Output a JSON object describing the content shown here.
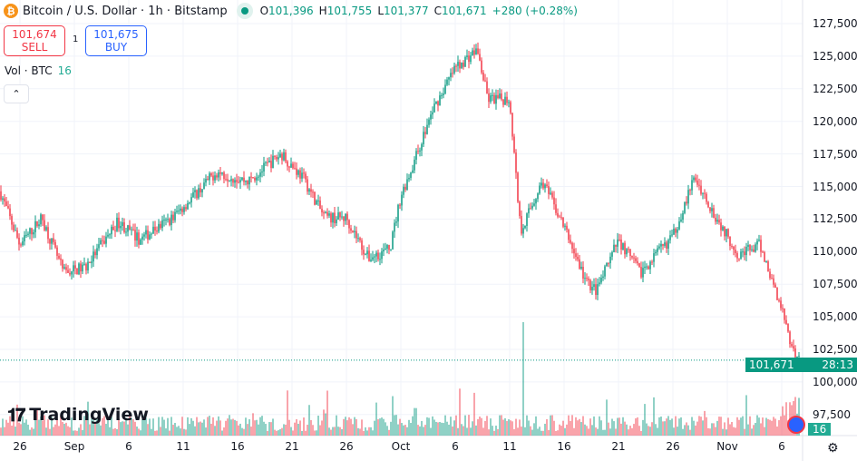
{
  "header": {
    "title": "Bitcoin / U.S. Dollar · 1h · Bitstamp",
    "coin_icon": "bitcoin-icon",
    "status": "market-open",
    "ohlc": {
      "o_label": "O",
      "o": "101,396",
      "h_label": "H",
      "h": "101,755",
      "l_label": "L",
      "l": "101,377",
      "c_label": "C",
      "c": "101,671",
      "change": "+280 (+0.28%)"
    }
  },
  "trade": {
    "sell_price": "101,674",
    "sell_label": "SELL",
    "quantity": "1",
    "buy_price": "101,675",
    "buy_label": "BUY"
  },
  "volume": {
    "label": "Vol · BTC",
    "value": "16"
  },
  "brand": "TradingView",
  "price_axis": {
    "labels": [
      "127,500",
      "125,000",
      "122,500",
      "120,000",
      "117,500",
      "115,000",
      "112,500",
      "110,000",
      "107,500",
      "105,000",
      "102,500",
      "100,000",
      "97,500"
    ],
    "current_price": "101,671",
    "countdown": "28:13",
    "volume_tag": "16"
  },
  "time_axis": {
    "labels": [
      "26",
      "Sep",
      "6",
      "11",
      "16",
      "21",
      "26",
      "Oct",
      "6",
      "11",
      "16",
      "21",
      "26",
      "Nov",
      "6"
    ]
  },
  "colors": {
    "up": "#089981",
    "down": "#f23645",
    "grid": "#f0f3fa"
  },
  "chart_data": {
    "type": "candlestick",
    "symbol": "BTCUSD",
    "interval": "1h",
    "ylim": [
      97500,
      127500
    ],
    "grid": true,
    "approx_closes": [
      [
        "Aug 24",
        115000
      ],
      [
        "Aug 26",
        110500
      ],
      [
        "Aug 28",
        112600
      ],
      [
        "Aug 30",
        108400
      ],
      [
        "Sep 1",
        108800
      ],
      [
        "Sep 4",
        112300
      ],
      [
        "Sep 6",
        110900
      ],
      [
        "Sep 9",
        112600
      ],
      [
        "Sep 11",
        114300
      ],
      [
        "Sep 13",
        116100
      ],
      [
        "Sep 16",
        115400
      ],
      [
        "Sep 19",
        117500
      ],
      [
        "Sep 21",
        115700
      ],
      [
        "Sep 23",
        112600
      ],
      [
        "Sep 25",
        112600
      ],
      [
        "Sep 27",
        109500
      ],
      [
        "Sep 29",
        110200
      ],
      [
        "Sep 30",
        114300
      ],
      [
        "Oct 1",
        116400
      ],
      [
        "Oct 3",
        121000
      ],
      [
        "Oct 5",
        124100
      ],
      [
        "Oct 7",
        125500
      ],
      [
        "Oct 8",
        121700
      ],
      [
        "Oct 10",
        121700
      ],
      [
        "Oct 11",
        111600
      ],
      [
        "Oct 13",
        115400
      ],
      [
        "Oct 15",
        111900
      ],
      [
        "Oct 17",
        107700
      ],
      [
        "Oct 18",
        107000
      ],
      [
        "Oct 20",
        110900
      ],
      [
        "Oct 22",
        108400
      ],
      [
        "Oct 25",
        111200
      ],
      [
        "Oct 27",
        115700
      ],
      [
        "Oct 29",
        112600
      ],
      [
        "Oct 31",
        109800
      ],
      [
        "Nov 2",
        110500
      ],
      [
        "Nov 4",
        105600
      ],
      [
        "Nov 5",
        102200
      ],
      [
        "Nov 6",
        101671
      ]
    ]
  }
}
